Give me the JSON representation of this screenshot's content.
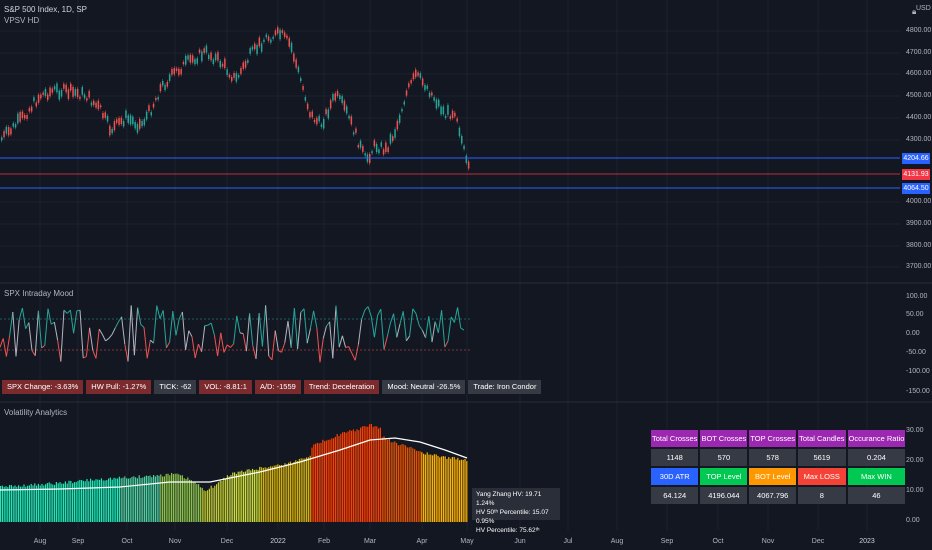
{
  "header": {
    "symbol_line": "S&P 500 Index, 1D, SP",
    "indicator_line": "VPSV HD",
    "currency": "USD"
  },
  "price_axis": [
    "4800.00",
    "4700.00",
    "4600.00",
    "4500.00",
    "4400.00",
    "4300.00",
    "4000.00",
    "3900.00",
    "3800.00",
    "3700.00"
  ],
  "price_tags": [
    {
      "value": "4204.66",
      "color": "#2962ff"
    },
    {
      "value": "4131.93",
      "color": "#f23645"
    },
    {
      "value": "4064.50",
      "color": "#2962ff"
    }
  ],
  "mood_panel": {
    "title": "SPX Intraday Mood",
    "axis": [
      "100.00",
      "50.00",
      "0.00",
      "-50.00",
      "-100.00",
      "-150.00"
    ],
    "labels": [
      {
        "text": "SPX Change: -3.63%",
        "color": "#7b2a2e"
      },
      {
        "text": "HW Pull: -1.27%",
        "color": "#7b2a2e"
      },
      {
        "text": "TICK: -62",
        "color": "#363a45"
      },
      {
        "text": "VOL: -8.81:1",
        "color": "#7b2a2e"
      },
      {
        "text": "A/D: -1559",
        "color": "#7b2a2e"
      },
      {
        "text": "Trend: Deceleration",
        "color": "#7b2a2e"
      },
      {
        "text": "Mood: Neutral -26.5%",
        "color": "#363a45"
      },
      {
        "text": "Trade: Iron Condor",
        "color": "#363a45"
      }
    ]
  },
  "volatility_panel": {
    "title": "Volatility Analytics",
    "axis": [
      "30.00",
      "20.00",
      "10.00",
      "0.00"
    ],
    "hv_info": [
      "Yang Zhang HV: 19.71  1.24%",
      "HV 50ᵗʰ Percentile: 15.07  0.95%",
      "HV Percentile: 75.62ᵗʰ"
    ]
  },
  "stats_table": {
    "row1": [
      "Total Crosses",
      "BOT Crosses",
      "TOP Crosses",
      "Total Candles",
      "Occurance Ratio"
    ],
    "row2": [
      "1148",
      "570",
      "578",
      "5619",
      "0.204"
    ],
    "row3": [
      "30D ATR",
      "TOP Level",
      "BOT Level",
      "Max LOSS",
      "Max WIN"
    ],
    "row4": [
      "64.124",
      "4196.044",
      "4067.796",
      "8",
      "46"
    ]
  },
  "time_axis": [
    "Aug",
    "Sep",
    "Oct",
    "Nov",
    "Dec",
    "2022",
    "Feb",
    "Mar",
    "Apr",
    "May",
    "Jun",
    "Jul",
    "Aug",
    "Sep",
    "Oct",
    "Nov",
    "Dec",
    "2023"
  ],
  "colors": {
    "up": "#26a69a",
    "down": "#ef5350",
    "hline": "#2962ff",
    "hline_red": "#f23645"
  }
}
